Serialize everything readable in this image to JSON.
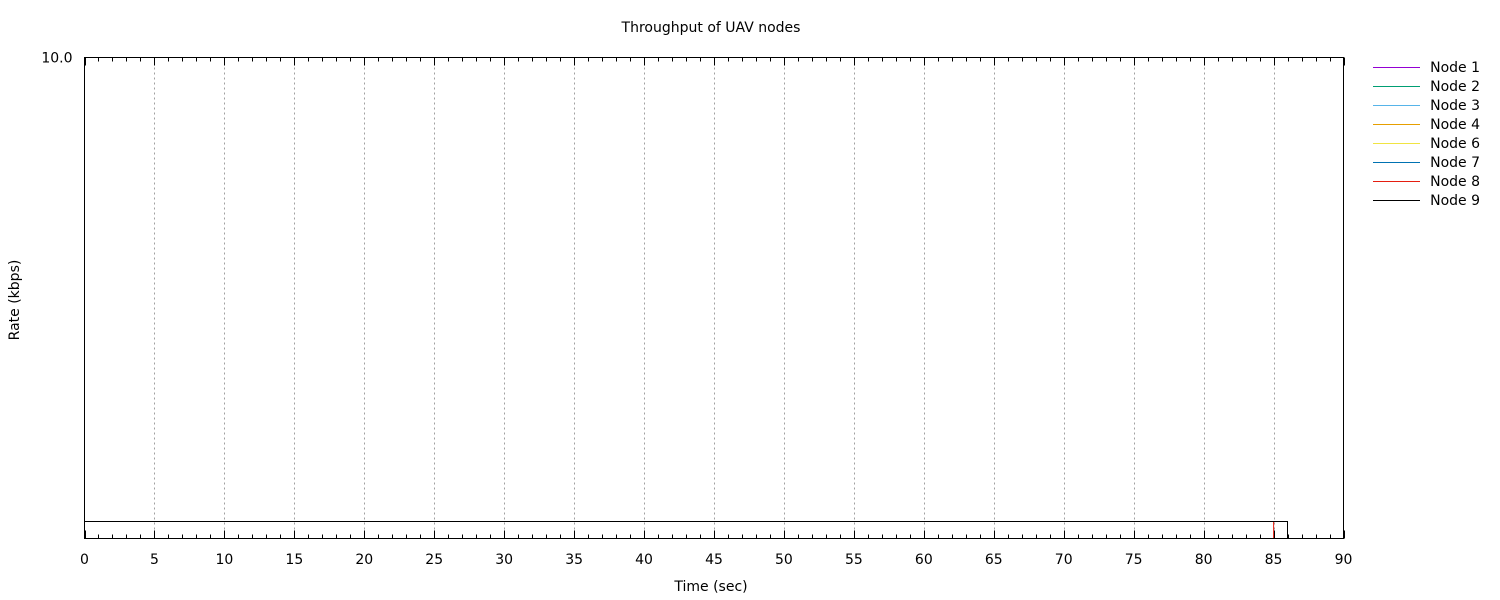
{
  "chart_data": {
    "type": "line",
    "title": "Throughput of UAV nodes",
    "xlabel": "Time (sec)",
    "ylabel": "Rate (kbps)",
    "xlim": [
      0,
      90
    ],
    "x_ticks": [
      0,
      5,
      10,
      15,
      20,
      25,
      30,
      35,
      40,
      45,
      50,
      55,
      60,
      65,
      70,
      75,
      80,
      85,
      90
    ],
    "x_minor_step": 1,
    "y_tick_labels": [
      "10.0"
    ],
    "grid": "vertical-dotted",
    "legend_position": "outside-right-top",
    "series": [
      {
        "name": "Node 1",
        "color": "#9400d3",
        "x": [],
        "y": []
      },
      {
        "name": "Node 2",
        "color": "#009e73",
        "x": [],
        "y": []
      },
      {
        "name": "Node 3",
        "color": "#56b4e9",
        "x": [],
        "y": []
      },
      {
        "name": "Node 4",
        "color": "#e69f00",
        "x": [],
        "y": []
      },
      {
        "name": "Node 6",
        "color": "#f0e442",
        "x": [],
        "y": []
      },
      {
        "name": "Node 7",
        "color": "#0072b2",
        "x": [],
        "y": []
      },
      {
        "name": "Node 8",
        "color": "#e51e10",
        "x": [
          85,
          85
        ],
        "y": [
          0,
          1
        ]
      },
      {
        "name": "Node 9",
        "color": "#000000",
        "x": [
          0,
          86,
          86
        ],
        "y": [
          1,
          1,
          0
        ]
      }
    ]
  }
}
